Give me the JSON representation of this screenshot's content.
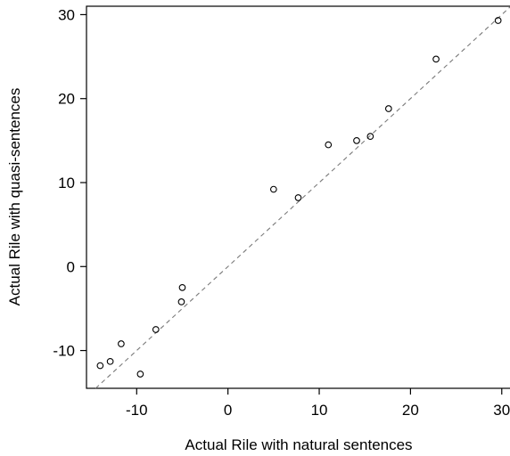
{
  "chart_data": {
    "type": "scatter",
    "title": "",
    "xlabel": "Actual Rile with natural sentences",
    "ylabel": "Actual Rile with quasi-sentences",
    "xlim": [
      -15.5,
      31
    ],
    "ylim": [
      -14.5,
      31
    ],
    "x_ticks": [
      -10,
      0,
      10,
      20,
      30
    ],
    "y_ticks": [
      -10,
      0,
      10,
      20,
      30
    ],
    "reference_line": {
      "style": "dashed",
      "slope": 1,
      "intercept": 0,
      "color": "#7a7a7a"
    },
    "grid": false,
    "series": [
      {
        "marker": "open-circle",
        "color": "#000000",
        "points": [
          {
            "x": -14.0,
            "y": -11.8
          },
          {
            "x": -12.9,
            "y": -11.3
          },
          {
            "x": -11.7,
            "y": -9.2
          },
          {
            "x": -9.6,
            "y": -12.8
          },
          {
            "x": -7.9,
            "y": -7.5
          },
          {
            "x": -5.0,
            "y": -2.5
          },
          {
            "x": -5.1,
            "y": -4.2
          },
          {
            "x": 5.0,
            "y": 9.2
          },
          {
            "x": 7.7,
            "y": 8.2
          },
          {
            "x": 11.0,
            "y": 14.5
          },
          {
            "x": 14.1,
            "y": 15.0
          },
          {
            "x": 15.6,
            "y": 15.5
          },
          {
            "x": 17.6,
            "y": 18.8
          },
          {
            "x": 22.8,
            "y": 24.7
          },
          {
            "x": 29.6,
            "y": 29.3
          }
        ]
      }
    ]
  }
}
